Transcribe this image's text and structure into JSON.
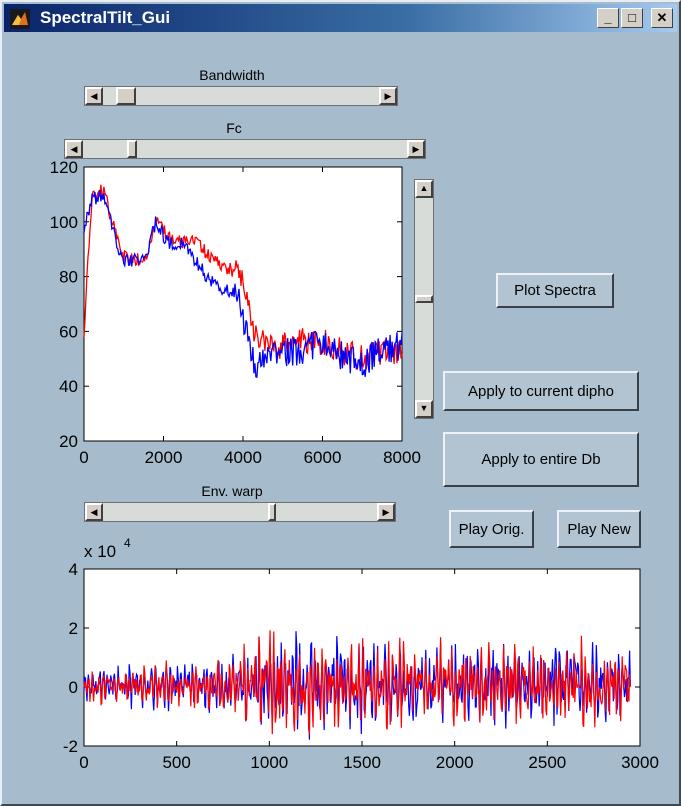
{
  "window": {
    "title": "SpectralTilt_Gui",
    "controls": {
      "minimize": "_",
      "maximize": "□",
      "close": "✕"
    }
  },
  "sliders": {
    "bandwidth": {
      "label": "Bandwidth",
      "value": 0.05
    },
    "fc": {
      "label": "Fc",
      "value": 0.14
    },
    "env_warp": {
      "label": "Env. warp",
      "value": 0.62
    },
    "spectrum_vertical": {
      "value": 0.5
    }
  },
  "buttons": {
    "plot_spectra": "Plot Spectra",
    "apply_current": "Apply to current dipho",
    "apply_entire": "Apply to entire Db",
    "play_orig": "Play Orig.",
    "play_new": "Play New"
  },
  "chart_data": [
    {
      "type": "line",
      "title": "",
      "xlabel": "",
      "ylabel": "",
      "xlim": [
        0,
        8000
      ],
      "ylim": [
        20,
        120
      ],
      "x_ticks": [
        "0",
        "2000",
        "4000",
        "6000",
        "8000"
      ],
      "y_ticks": [
        "20",
        "40",
        "60",
        "80",
        "100",
        "120"
      ],
      "colors": {
        "original": "#ff0000",
        "modified": "#0000ff"
      },
      "series": [
        {
          "color": "#ff0000",
          "x": [
            0,
            200,
            500,
            800,
            1000,
            1300,
            1600,
            1800,
            2100,
            2500,
            2800,
            3200,
            3600,
            3900,
            4100,
            4300,
            4600,
            5000,
            5500,
            6000,
            6500,
            7000,
            7500,
            8000
          ],
          "y": [
            60,
            110,
            112,
            95,
            88,
            86,
            88,
            101,
            95,
            93,
            93,
            87,
            83,
            81,
            72,
            58,
            58,
            54,
            57,
            56,
            52,
            50,
            52,
            54
          ]
        },
        {
          "color": "#0000ff",
          "x": [
            0,
            200,
            500,
            800,
            1000,
            1300,
            1600,
            1800,
            2100,
            2500,
            2800,
            3200,
            3600,
            3900,
            4100,
            4300,
            4600,
            5000,
            5500,
            6000,
            6500,
            7000,
            7500,
            8000
          ],
          "y": [
            98,
            108,
            110,
            93,
            86,
            86,
            89,
            100,
            92,
            92,
            86,
            78,
            75,
            74,
            58,
            48,
            50,
            52,
            53,
            56,
            51,
            48,
            53,
            55
          ]
        }
      ]
    },
    {
      "type": "line",
      "title": "",
      "xlabel": "",
      "ylabel": "",
      "multiplier": "x 10",
      "multiplier_exponent": "4",
      "xlim": [
        0,
        3000
      ],
      "ylim": [
        -2,
        4
      ],
      "x_ticks": [
        "0",
        "500",
        "1000",
        "1500",
        "2000",
        "2500",
        "3000"
      ],
      "y_ticks": [
        "-2",
        "0",
        "2",
        "4"
      ],
      "colors": {
        "original": "#0000ff",
        "modified": "#ff0000"
      },
      "series": [
        {
          "color": "#0000ff",
          "x": [
            0,
            2950
          ],
          "envelope": [
            [
              0,
              0.8
            ],
            [
              300,
              1.0
            ],
            [
              600,
              1.1
            ],
            [
              800,
              1.4
            ],
            [
              950,
              2.2
            ],
            [
              1150,
              2.3
            ],
            [
              1300,
              2.1
            ],
            [
              1600,
              1.9
            ],
            [
              1900,
              1.8
            ],
            [
              2300,
              1.9
            ],
            [
              2600,
              1.9
            ],
            [
              2950,
              2.0
            ]
          ]
        },
        {
          "color": "#ff0000",
          "x": [
            0,
            2950
          ],
          "envelope": [
            [
              0,
              0.8
            ],
            [
              300,
              1.0
            ],
            [
              600,
              1.1
            ],
            [
              800,
              1.4
            ],
            [
              950,
              2.1
            ],
            [
              1150,
              2.4
            ],
            [
              1300,
              2.2
            ],
            [
              1600,
              1.9
            ],
            [
              1900,
              1.8
            ],
            [
              2300,
              1.9
            ],
            [
              2600,
              1.9
            ],
            [
              2950,
              2.0
            ]
          ]
        }
      ]
    }
  ]
}
